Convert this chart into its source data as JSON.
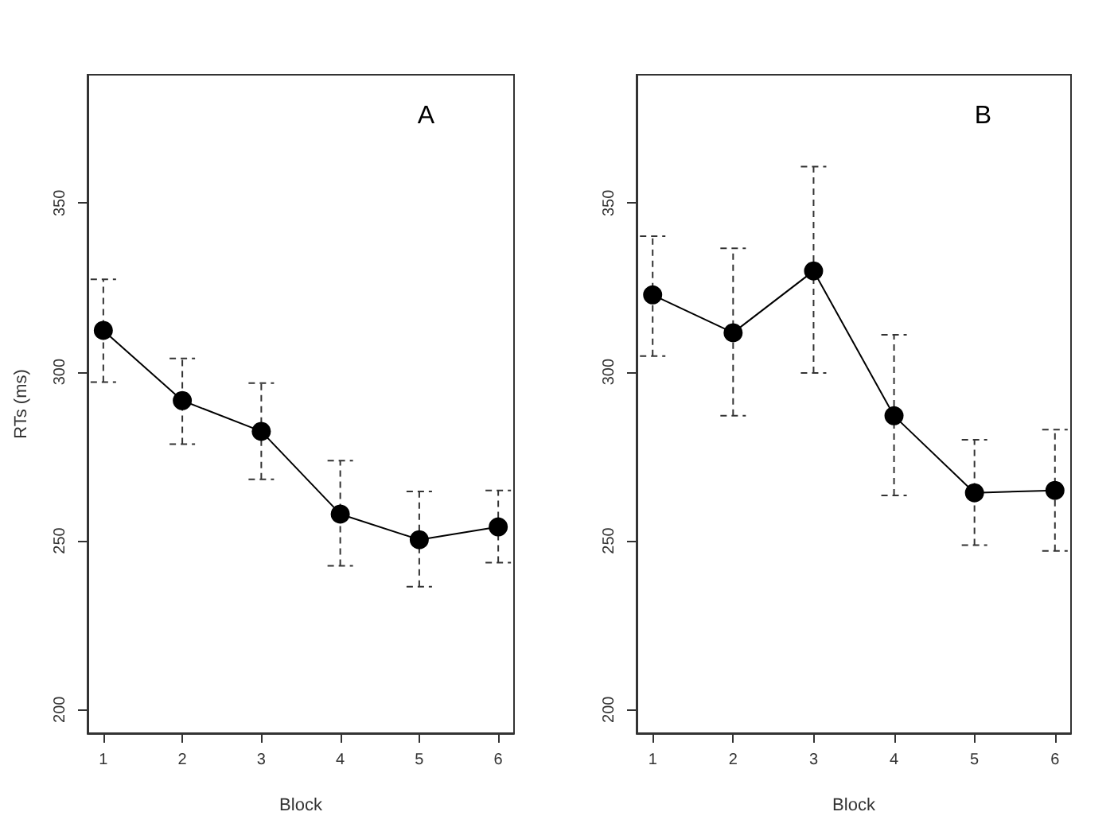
{
  "chart_data": [
    {
      "type": "line",
      "xlabel": "Block",
      "ylabel": "RTs (ms)",
      "annotations": [
        "A"
      ],
      "x": [
        1,
        2,
        3,
        4,
        5,
        6
      ],
      "series": [
        {
          "color": "#000000",
          "values": [
            312.3,
            291.5,
            282.4,
            257.9,
            250.3,
            254.1
          ],
          "errors": [
            [
              297,
              327.4
            ],
            [
              278.6,
              304
            ],
            [
              268.2,
              296.7
            ],
            [
              242.6,
              273.7
            ],
            [
              236.4,
              264.6
            ],
            [
              243.5,
              264.9
            ]
          ]
        }
      ],
      "xlim": [
        0.8,
        6.2
      ],
      "xticks": [
        1,
        2,
        3,
        4,
        5,
        6
      ],
      "ylim": [
        193,
        388
      ],
      "yticks": [
        200,
        250,
        300,
        350
      ],
      "grid": false,
      "marker": "circle",
      "line_style": "solid"
    },
    {
      "type": "line",
      "xlabel": "Block",
      "annotations": [
        "B"
      ],
      "x": [
        1,
        2,
        3,
        4,
        5,
        6
      ],
      "series": [
        {
          "color": "#000000",
          "values": [
            322.8,
            311.6,
            329.9,
            287,
            264.2,
            264.9
          ],
          "errors": [
            [
              304.7,
              340.2
            ],
            [
              287,
              336.6
            ],
            [
              299.7,
              360.8
            ],
            [
              263.4,
              311
            ],
            [
              248.7,
              279.9
            ],
            [
              247,
              282.9
            ]
          ]
        }
      ],
      "xlim": [
        0.8,
        6.2
      ],
      "xticks": [
        1,
        2,
        3,
        4,
        5,
        6
      ],
      "ylim": [
        193,
        388
      ],
      "yticks": [
        200,
        250,
        300,
        350
      ],
      "grid": false,
      "marker": "circle",
      "line_style": "solid"
    }
  ]
}
